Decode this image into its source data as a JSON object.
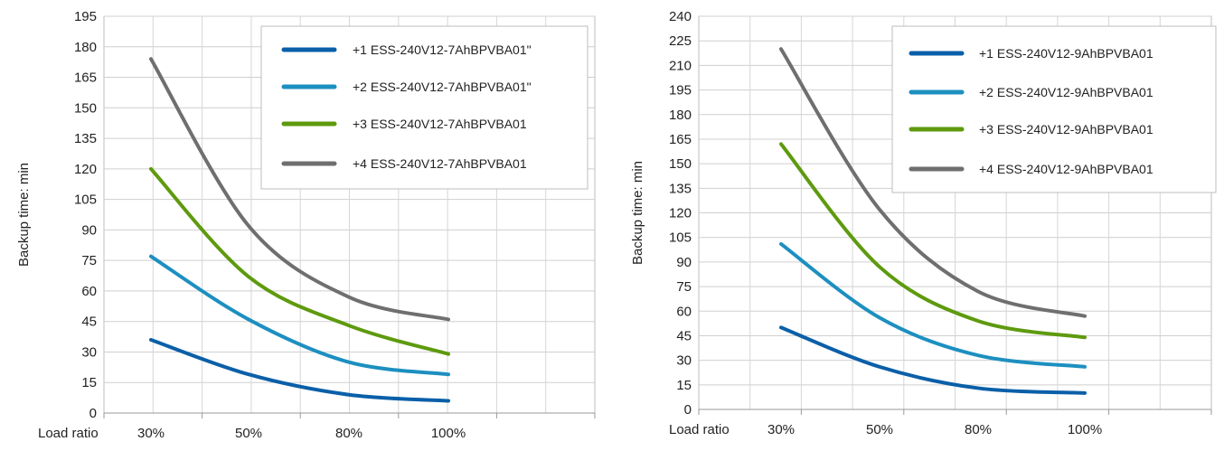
{
  "chart_data": [
    {
      "type": "line",
      "ylabel": "Backup time: min",
      "xlabel": "Load ratio",
      "x_tick_labels": [
        "30%",
        "50%",
        "80%",
        "100%"
      ],
      "yticks": [
        0,
        15,
        30,
        45,
        60,
        75,
        90,
        105,
        120,
        135,
        150,
        165,
        180,
        195
      ],
      "ylim": [
        0,
        195
      ],
      "grid": true,
      "legend_position": "top-right",
      "series": [
        {
          "name": "+1 ESS-240V12-7AhBPVBA01\"",
          "color": "#0a5fa8",
          "values": [
            36,
            19,
            9,
            6
          ]
        },
        {
          "name": "+2 ESS-240V12-7AhBPVBA01\"",
          "color": "#1d8fc0",
          "values": [
            77,
            46,
            25,
            19
          ]
        },
        {
          "name": "+3 ESS-240V12-7AhBPVBA01",
          "color": "#5e9a0e",
          "values": [
            120,
            67,
            43,
            29
          ]
        },
        {
          "name": "+4 ESS-240V12-7AhBPVBA01",
          "color": "#6f6f6f",
          "values": [
            174,
            92,
            57,
            46
          ]
        }
      ]
    },
    {
      "type": "line",
      "ylabel": "Backup time: min",
      "xlabel": "Load ratio",
      "x_tick_labels": [
        "30%",
        "50%",
        "80%",
        "100%"
      ],
      "yticks": [
        0,
        15,
        30,
        45,
        60,
        75,
        90,
        105,
        120,
        135,
        150,
        165,
        180,
        195,
        210,
        225,
        240
      ],
      "ylim": [
        0,
        240
      ],
      "grid": true,
      "legend_position": "top-right",
      "series": [
        {
          "name": "+1 ESS-240V12-9AhBPVBA01",
          "color": "#0a5fa8",
          "values": [
            50,
            26,
            13,
            10
          ]
        },
        {
          "name": "+2 ESS-240V12-9AhBPVBA01",
          "color": "#1d8fc0",
          "values": [
            101,
            56,
            33,
            26
          ]
        },
        {
          "name": "+3 ESS-240V12-9AhBPVBA01",
          "color": "#5e9a0e",
          "values": [
            162,
            87,
            54,
            44
          ]
        },
        {
          "name": "+4 ESS-240V12-9AhBPVBA01",
          "color": "#6f6f6f",
          "values": [
            220,
            122,
            72,
            57
          ]
        }
      ]
    }
  ]
}
